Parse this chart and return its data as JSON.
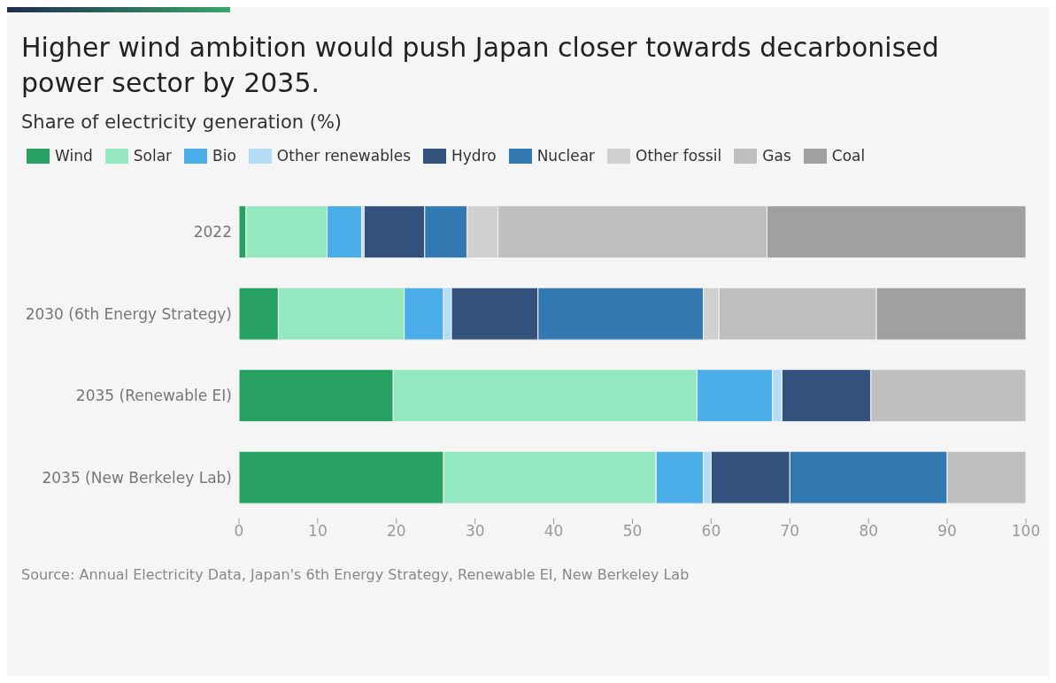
{
  "chart_data": {
    "type": "bar",
    "orientation": "horizontal",
    "stacked": true,
    "title": "Higher wind ambition would push Japan closer towards decarbonised power sector by 2035.",
    "subtitle": "Share of electricity generation (%)",
    "categories": [
      "2022",
      "2030 (6th Energy Strategy)",
      "2035 (Renewable EI)",
      "2035 (New Berkeley Lab)"
    ],
    "series": [
      {
        "name": "Wind",
        "color": "#27a162",
        "values": [
          0.9,
          5,
          19.6,
          26
        ]
      },
      {
        "name": "Solar",
        "color": "#94e8c0",
        "values": [
          10.3,
          16,
          38.6,
          27
        ]
      },
      {
        "name": "Bio",
        "color": "#4baee8",
        "values": [
          4.4,
          5,
          9.6,
          6
        ]
      },
      {
        "name": "Other renewables",
        "color": "#b3dcf5",
        "values": [
          0.3,
          1,
          1.2,
          1
        ]
      },
      {
        "name": "Hydro",
        "color": "#32527d",
        "values": [
          7.7,
          11,
          11.3,
          10
        ]
      },
      {
        "name": "Nuclear",
        "color": "#3179b0",
        "values": [
          5.4,
          21,
          0,
          20
        ]
      },
      {
        "name": "Other fossil",
        "color": "#d0d0d0",
        "values": [
          3.9,
          2,
          0,
          0
        ]
      },
      {
        "name": "Gas",
        "color": "#bfbfbf",
        "values": [
          34.2,
          20,
          19.7,
          10
        ]
      },
      {
        "name": "Coal",
        "color": "#a0a0a0",
        "values": [
          32.9,
          19,
          0,
          0
        ]
      }
    ],
    "xlim": [
      0,
      100
    ],
    "xticks": [
      0,
      10,
      20,
      30,
      40,
      50,
      60,
      70,
      80,
      90,
      100
    ],
    "grid": false,
    "legend": "top left",
    "annotations": [
      "Source: Annual Electricity Data, Japan's 6th Energy Strategy, Renewable EI, New Berkeley Lab"
    ]
  }
}
